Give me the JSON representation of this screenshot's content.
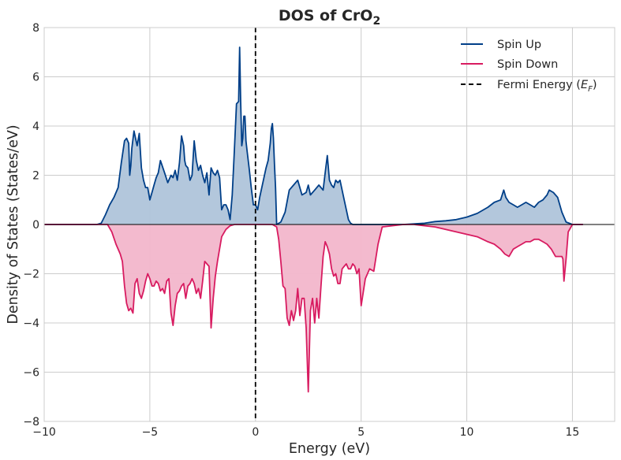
{
  "chart_data": {
    "type": "area",
    "title": {
      "main": "DOS of CrO",
      "subscript": "2"
    },
    "xlabel": "Energy (eV)",
    "ylabel": "Density of States (States/eV)",
    "xlim": [
      -10,
      17
    ],
    "ylim": [
      -8,
      8
    ],
    "xticks": [
      -10,
      -5,
      0,
      5,
      10,
      15
    ],
    "yticks": [
      -8,
      -6,
      -4,
      -2,
      0,
      2,
      4,
      6,
      8
    ],
    "xtick_labels": [
      "−10",
      "−5",
      "0",
      "5",
      "10",
      "15"
    ],
    "ytick_labels": [
      "−8",
      "−6",
      "−4",
      "−2",
      "0",
      "2",
      "4",
      "6",
      "8"
    ],
    "grid": true,
    "legend_position": "top-right",
    "fermi_energy": 0,
    "legend": {
      "spin_up": "Spin Up",
      "spin_down": "Spin Down",
      "fermi": {
        "text": "Fermi Energy (",
        "symbol": "E",
        "subscript": "F",
        "close": ")"
      }
    },
    "colors": {
      "spin_up_line": "#003f88",
      "spin_up_fill": "#afc4da",
      "spin_down_line": "#d81b60",
      "spin_down_fill": "#f2b6cb",
      "fermi_line": "#000000",
      "grid": "#cccccc",
      "frame": "#cccccc"
    },
    "series": [
      {
        "name": "Spin Up",
        "x": [
          -10,
          -7.5,
          -7.3,
          -7.1,
          -6.9,
          -6.7,
          -6.5,
          -6.35,
          -6.2,
          -6.1,
          -6.0,
          -5.95,
          -5.9,
          -5.85,
          -5.75,
          -5.6,
          -5.5,
          -5.4,
          -5.3,
          -5.2,
          -5.1,
          -5.0,
          -4.9,
          -4.8,
          -4.7,
          -4.6,
          -4.5,
          -4.3,
          -4.15,
          -4.0,
          -3.9,
          -3.8,
          -3.7,
          -3.6,
          -3.5,
          -3.4,
          -3.35,
          -3.3,
          -3.2,
          -3.1,
          -3.0,
          -2.9,
          -2.8,
          -2.7,
          -2.6,
          -2.5,
          -2.4,
          -2.3,
          -2.2,
          -2.1,
          -2.0,
          -1.9,
          -1.8,
          -1.7,
          -1.6,
          -1.5,
          -1.4,
          -1.3,
          -1.2,
          -1.1,
          -1.0,
          -0.9,
          -0.8,
          -0.75,
          -0.7,
          -0.65,
          -0.6,
          -0.55,
          -0.5,
          -0.45,
          -0.4,
          -0.3,
          -0.2,
          -0.1,
          0.0,
          0.1,
          0.2,
          0.3,
          0.4,
          0.5,
          0.6,
          0.7,
          0.75,
          0.8,
          0.85,
          0.9,
          0.95,
          1.0,
          1.2,
          1.4,
          1.6,
          1.8,
          2.0,
          2.2,
          2.4,
          2.5,
          2.6,
          2.8,
          3.0,
          3.2,
          3.3,
          3.4,
          3.5,
          3.6,
          3.7,
          3.8,
          3.9,
          4.0,
          4.2,
          4.4,
          4.5,
          4.6,
          4.8,
          5.0,
          6.0,
          7.0,
          8.0,
          8.5,
          9.0,
          9.5,
          10.0,
          10.5,
          11.0,
          11.3,
          11.6,
          11.75,
          11.85,
          12.0,
          12.2,
          12.4,
          12.6,
          12.8,
          13.0,
          13.2,
          13.4,
          13.6,
          13.8,
          13.9,
          14.1,
          14.3,
          14.5,
          14.7,
          15.0,
          15.5
        ],
        "values": [
          0,
          0,
          0.05,
          0.4,
          0.8,
          1.1,
          1.5,
          2.5,
          3.4,
          3.5,
          3.3,
          2.0,
          2.4,
          3.1,
          3.8,
          3.2,
          3.7,
          2.3,
          1.8,
          1.5,
          1.5,
          1.0,
          1.3,
          1.6,
          1.9,
          2.1,
          2.6,
          2.1,
          1.7,
          2.0,
          1.9,
          2.2,
          1.8,
          2.5,
          3.6,
          3.2,
          2.6,
          2.4,
          2.3,
          1.8,
          2.0,
          3.4,
          2.6,
          2.2,
          2.4,
          2.0,
          1.7,
          2.1,
          1.2,
          2.3,
          2.1,
          2.0,
          2.2,
          1.9,
          0.6,
          0.8,
          0.8,
          0.6,
          0.2,
          1.2,
          3.0,
          4.9,
          5.0,
          7.2,
          5.0,
          3.2,
          3.5,
          4.4,
          4.4,
          3.4,
          3.0,
          2.3,
          1.5,
          0.8,
          0.8,
          0.6,
          1.1,
          1.5,
          1.9,
          2.3,
          2.6,
          3.3,
          3.9,
          4.1,
          3.5,
          2.4,
          1.5,
          0.0,
          0.1,
          0.5,
          1.4,
          1.6,
          1.8,
          1.2,
          1.3,
          1.6,
          1.2,
          1.4,
          1.6,
          1.4,
          2.1,
          2.8,
          1.8,
          1.6,
          1.5,
          1.8,
          1.7,
          1.8,
          1.0,
          0.2,
          0.05,
          0.0,
          0.0,
          0.0,
          0.0,
          0.0,
          0.05,
          0.12,
          0.15,
          0.2,
          0.3,
          0.45,
          0.7,
          0.9,
          1.0,
          1.4,
          1.1,
          0.9,
          0.8,
          0.7,
          0.8,
          0.9,
          0.8,
          0.7,
          0.9,
          1.0,
          1.2,
          1.4,
          1.3,
          1.1,
          0.5,
          0.1,
          0.0,
          0.0
        ]
      },
      {
        "name": "Spin Down",
        "x": [
          -10,
          -7.0,
          -6.8,
          -6.6,
          -6.4,
          -6.3,
          -6.2,
          -6.1,
          -6.0,
          -5.9,
          -5.8,
          -5.75,
          -5.7,
          -5.6,
          -5.5,
          -5.4,
          -5.3,
          -5.2,
          -5.1,
          -5.0,
          -4.9,
          -4.8,
          -4.7,
          -4.6,
          -4.5,
          -4.4,
          -4.3,
          -4.2,
          -4.1,
          -4.0,
          -3.9,
          -3.8,
          -3.7,
          -3.6,
          -3.5,
          -3.4,
          -3.3,
          -3.2,
          -3.1,
          -3.0,
          -2.9,
          -2.8,
          -2.7,
          -2.6,
          -2.5,
          -2.4,
          -2.3,
          -2.2,
          -2.1,
          -2.0,
          -1.9,
          -1.8,
          -1.6,
          -1.4,
          -1.2,
          -1.0,
          -0.8,
          -0.6,
          -0.4,
          -0.2,
          0.0,
          0.2,
          0.4,
          0.6,
          0.8,
          1.0,
          1.1,
          1.2,
          1.3,
          1.4,
          1.5,
          1.6,
          1.7,
          1.8,
          1.9,
          2.0,
          2.1,
          2.2,
          2.3,
          2.4,
          2.5,
          2.6,
          2.7,
          2.8,
          2.9,
          3.0,
          3.1,
          3.2,
          3.3,
          3.4,
          3.5,
          3.6,
          3.7,
          3.8,
          3.9,
          4.0,
          4.1,
          4.2,
          4.3,
          4.4,
          4.5,
          4.6,
          4.7,
          4.8,
          4.9,
          5.0,
          5.2,
          5.4,
          5.6,
          5.8,
          6.0,
          7.0,
          7.5,
          8.0,
          8.5,
          9.0,
          9.5,
          10.0,
          10.5,
          11.0,
          11.3,
          11.6,
          11.8,
          12.0,
          12.2,
          12.4,
          12.6,
          12.8,
          13.0,
          13.2,
          13.4,
          13.6,
          13.8,
          14.0,
          14.2,
          14.4,
          14.5,
          14.55,
          14.6,
          14.7,
          14.8,
          15.0,
          15.5
        ],
        "values": [
          0,
          0,
          -0.3,
          -0.8,
          -1.2,
          -1.5,
          -2.5,
          -3.2,
          -3.5,
          -3.4,
          -3.6,
          -3.0,
          -2.4,
          -2.2,
          -2.8,
          -3.0,
          -2.7,
          -2.3,
          -2.0,
          -2.2,
          -2.5,
          -2.5,
          -2.3,
          -2.4,
          -2.7,
          -2.6,
          -2.8,
          -2.3,
          -2.2,
          -3.6,
          -4.1,
          -3.3,
          -2.8,
          -2.7,
          -2.5,
          -2.4,
          -3.0,
          -2.5,
          -2.4,
          -2.2,
          -2.4,
          -2.8,
          -2.6,
          -3.0,
          -2.3,
          -1.5,
          -1.6,
          -1.7,
          -4.2,
          -3.0,
          -2.1,
          -1.5,
          -0.5,
          -0.2,
          -0.05,
          0,
          0,
          0,
          0,
          0,
          0,
          0,
          0,
          0,
          0,
          -0.1,
          -0.6,
          -1.5,
          -2.5,
          -2.6,
          -3.8,
          -4.1,
          -3.5,
          -3.9,
          -3.5,
          -2.6,
          -3.7,
          -3.0,
          -3.0,
          -4.2,
          -6.8,
          -3.5,
          -3.0,
          -4.0,
          -3.0,
          -3.8,
          -2.5,
          -1.3,
          -0.7,
          -0.9,
          -1.2,
          -1.8,
          -2.1,
          -2.0,
          -2.4,
          -2.4,
          -1.8,
          -1.7,
          -1.6,
          -1.8,
          -1.8,
          -1.6,
          -1.7,
          -2.0,
          -1.8,
          -3.3,
          -2.2,
          -1.8,
          -1.9,
          -0.8,
          -0.1,
          0,
          0,
          -0.05,
          -0.1,
          -0.2,
          -0.3,
          -0.4,
          -0.5,
          -0.7,
          -0.8,
          -1.0,
          -1.2,
          -1.3,
          -1.0,
          -0.9,
          -0.8,
          -0.7,
          -0.7,
          -0.6,
          -0.6,
          -0.7,
          -0.8,
          -1.0,
          -1.3,
          -1.3,
          -1.3,
          -1.4,
          -2.3,
          -1.4,
          -0.3,
          0,
          0
        ]
      }
    ]
  }
}
